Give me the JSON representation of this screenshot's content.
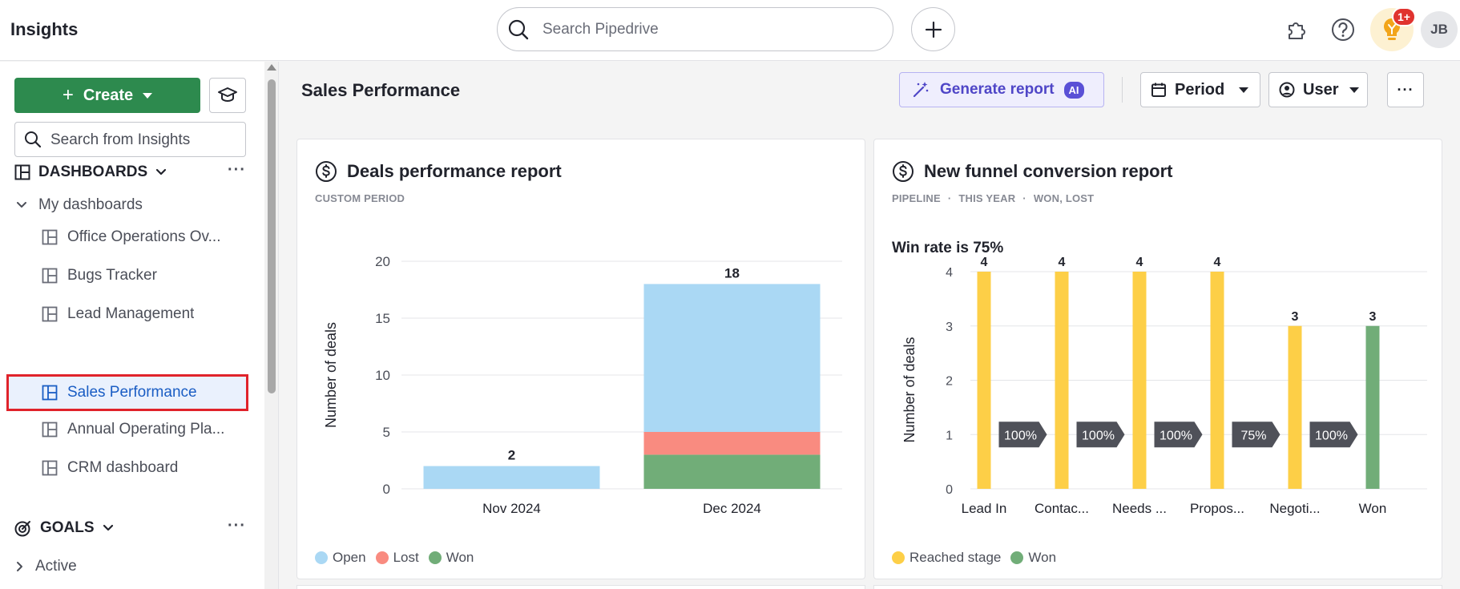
{
  "header": {
    "title": "Insights",
    "search_placeholder": "Search Pipedrive",
    "notification_count": "1+",
    "avatar_initials": "JB",
    "icons": [
      "search-icon",
      "plus-icon",
      "puzzle-icon",
      "help-icon",
      "lightbulb-icon"
    ]
  },
  "sidebar": {
    "create_label": "Create",
    "search_placeholder": "Search from Insights",
    "dashboards_heading": "DASHBOARDS",
    "my_dashboards_label": "My dashboards",
    "dashboards": [
      {
        "label": "Office Operations Ov..."
      },
      {
        "label": "Bugs Tracker"
      },
      {
        "label": "Lead Management"
      },
      {
        "label": "Sales Performance",
        "active": true
      },
      {
        "label": "Annual Operating Pla..."
      },
      {
        "label": "CRM dashboard"
      }
    ],
    "goals_heading": "GOALS",
    "active_label": "Active",
    "more_label": "···"
  },
  "main": {
    "title": "Sales Performance",
    "generate_label": "Generate report",
    "ai_badge": "AI",
    "period_label": "Period",
    "user_label": "User",
    "more_label": "···"
  },
  "colors": {
    "open": "#aad8f4",
    "lost": "#f98b80",
    "won": "#71ad78",
    "reached": "#fdcf47",
    "accent_green": "#2d8a4e",
    "ai_purple": "#5a50d6"
  },
  "cards": {
    "deals": {
      "title": "Deals performance report",
      "subtitle": "CUSTOM PERIOD",
      "legend": [
        "Open",
        "Lost",
        "Won"
      ]
    },
    "funnel": {
      "title": "New funnel conversion report",
      "subtitle": [
        "PIPELINE",
        "THIS YEAR",
        "WON, LOST"
      ],
      "win_rate_text": "Win rate is 75%",
      "legend": [
        "Reached stage",
        "Won"
      ]
    }
  },
  "chart_data": [
    {
      "type": "bar",
      "stacked": true,
      "title": "Deals performance report",
      "categories": [
        "Nov 2024",
        "Dec 2024"
      ],
      "series": [
        {
          "name": "Won",
          "values": [
            0,
            3
          ]
        },
        {
          "name": "Lost",
          "values": [
            0,
            2
          ]
        },
        {
          "name": "Open",
          "values": [
            2,
            13
          ]
        }
      ],
      "totals": [
        2,
        18
      ],
      "ylabel": "Number of deals",
      "ylim": [
        0,
        20
      ],
      "yticks": [
        0,
        5,
        10,
        15,
        20
      ],
      "grid": true,
      "legend": "bottom-left"
    },
    {
      "type": "bar",
      "title": "New funnel conversion report",
      "categories": [
        "Lead In",
        "Contac...",
        "Needs ...",
        "Propos...",
        "Negoti...",
        "Won"
      ],
      "series": [
        {
          "name": "Reached stage",
          "values": [
            4,
            4,
            4,
            4,
            3,
            null
          ]
        },
        {
          "name": "Won",
          "values": [
            null,
            null,
            null,
            null,
            null,
            3
          ]
        }
      ],
      "conversions": [
        "100%",
        "100%",
        "100%",
        "75%",
        "100%"
      ],
      "ylabel": "Number of deals",
      "ylim": [
        0,
        4
      ],
      "yticks": [
        0,
        1,
        2,
        3,
        4
      ],
      "grid": true,
      "legend": "bottom-left"
    }
  ]
}
